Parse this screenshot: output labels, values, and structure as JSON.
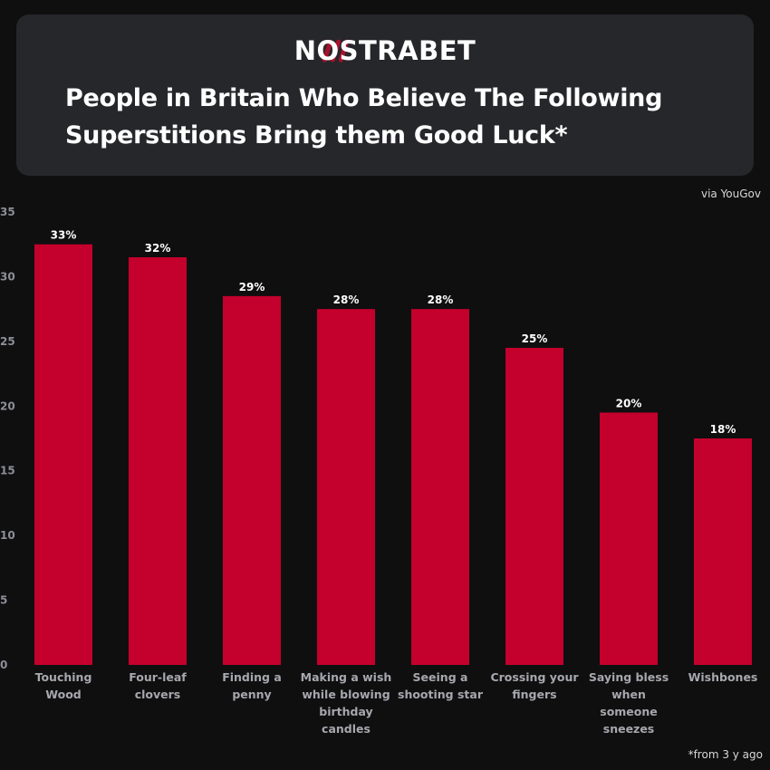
{
  "header": {
    "brand": "NOSTRABET",
    "title": "People in Britain Who Believe The Following Superstitions Bring them Good Luck*"
  },
  "source": "via YouGov",
  "footnote": "*from 3 y ago",
  "colors": {
    "bar": "#c4002c",
    "background": "#0f0f10",
    "card": "#26272b"
  },
  "chart_data": {
    "type": "bar",
    "title": "People in Britain Who Believe The Following Superstitions Bring them Good Luck*",
    "categories": [
      [
        "Touching",
        "Wood"
      ],
      [
        "Four-leaf",
        "clovers"
      ],
      [
        "Finding a",
        "penny"
      ],
      [
        "Making a wish",
        "while blowing",
        "birthday",
        "candles"
      ],
      [
        "Seeing a",
        "shooting star"
      ],
      [
        "Crossing your",
        "fingers"
      ],
      [
        "Saying bless",
        "when",
        "someone",
        "sneezes"
      ],
      [
        "Wishbones"
      ]
    ],
    "values": [
      32.5,
      31.5,
      28.5,
      27.5,
      27.5,
      24.5,
      19.5,
      17.5
    ],
    "data_labels": [
      "33%",
      "32%",
      "29%",
      "28%",
      "28%",
      "25%",
      "20%",
      "18%"
    ],
    "yticks": [
      "0",
      "5",
      "10",
      "15",
      "20",
      "25",
      "30",
      "35"
    ],
    "ylim": [
      0,
      35
    ],
    "grid": false,
    "legend": "none"
  }
}
